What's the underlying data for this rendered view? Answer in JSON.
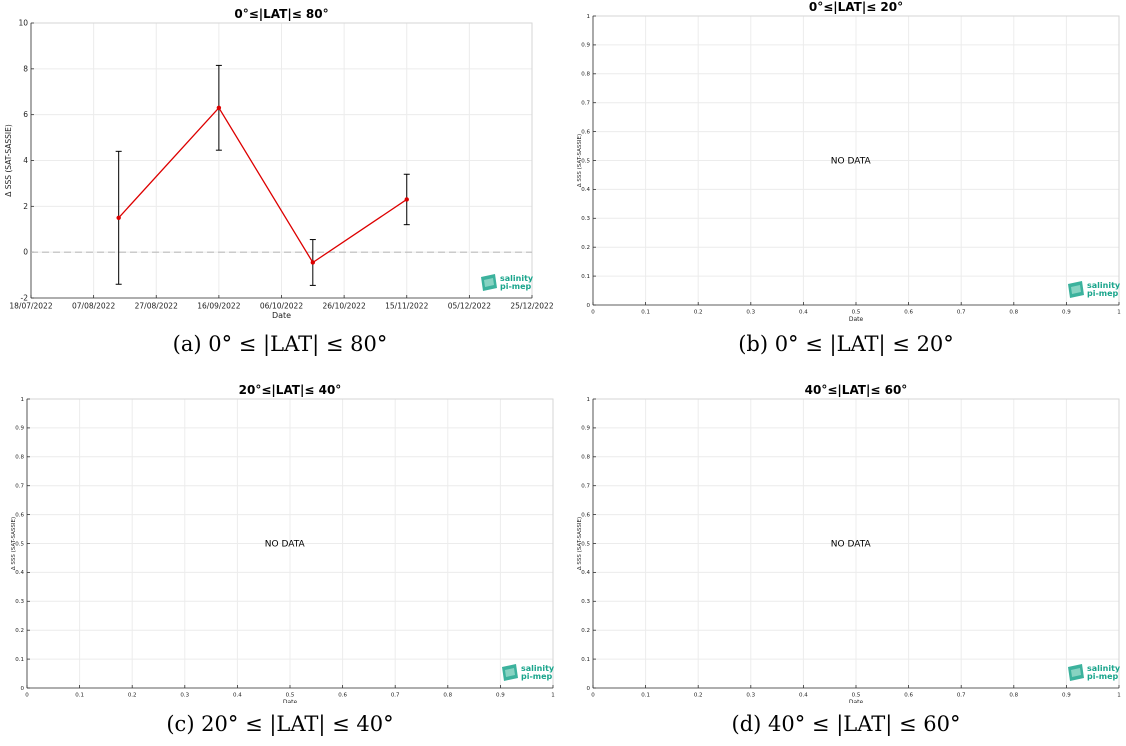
{
  "logo": {
    "line1": "salinity",
    "line2": "pi-mep",
    "color": "#1aa58c"
  },
  "chart_data": [
    {
      "type": "line",
      "title": "0°≤|LAT|≤ 80°",
      "xlabel": "Date",
      "ylabel": "Δ SSS (SAT-SASSIE)",
      "x_axis": "date",
      "xlim": [
        "2022-07-18",
        "2022-12-25"
      ],
      "ylim": [
        -2,
        10
      ],
      "xticks": [
        "18/07/2022",
        "07/08/2022",
        "27/08/2022",
        "16/09/2022",
        "06/10/2022",
        "26/10/2022",
        "15/11/2022",
        "05/12/2022",
        "25/12/2022"
      ],
      "yticks": [
        "-2",
        "0",
        "2",
        "4",
        "6",
        "8",
        "10"
      ],
      "grid": true,
      "zero_line": true,
      "series": [
        {
          "color": "#dd0000",
          "points": [
            {
              "x": "2022-08-15",
              "y": 1.5,
              "err": 2.9
            },
            {
              "x": "2022-09-16",
              "y": 6.3,
              "err": 1.85
            },
            {
              "x": "2022-10-16",
              "y": -0.45,
              "err": 1.0
            },
            {
              "x": "2022-11-15",
              "y": 2.3,
              "err": 1.1
            }
          ]
        }
      ],
      "caption": "(a) 0° ≤ |LAT| ≤ 80°"
    },
    {
      "type": "line",
      "title": "0°≤|LAT|≤ 20°",
      "xlabel": "Date",
      "ylabel": "Δ SSS (SAT-SASSIE)",
      "xlim": [
        0,
        1
      ],
      "ylim": [
        0,
        1
      ],
      "xticks": [
        "0",
        "0.1",
        "0.2",
        "0.3",
        "0.4",
        "0.5",
        "0.6",
        "0.7",
        "0.8",
        "0.9",
        "1"
      ],
      "yticks": [
        "0",
        "0.1",
        "0.2",
        "0.3",
        "0.4",
        "0.5",
        "0.6",
        "0.7",
        "0.8",
        "0.9",
        "1"
      ],
      "grid": true,
      "annotation": "NO DATA",
      "caption": "(b) 0° ≤ |LAT| ≤ 20°"
    },
    {
      "type": "line",
      "title": "20°≤|LAT|≤ 40°",
      "xlabel": "Date",
      "ylabel": "Δ SSS (SAT-SASSIE)",
      "xlim": [
        0,
        1
      ],
      "ylim": [
        0,
        1
      ],
      "xticks": [
        "0",
        "0.1",
        "0.2",
        "0.3",
        "0.4",
        "0.5",
        "0.6",
        "0.7",
        "0.8",
        "0.9",
        "1"
      ],
      "yticks": [
        "0",
        "0.1",
        "0.2",
        "0.3",
        "0.4",
        "0.5",
        "0.6",
        "0.7",
        "0.8",
        "0.9",
        "1"
      ],
      "grid": true,
      "annotation": "NO DATA",
      "caption": "(c) 20° ≤ |LAT| ≤ 40°"
    },
    {
      "type": "line",
      "title": "40°≤|LAT|≤ 60°",
      "xlabel": "Date",
      "ylabel": "Δ SSS (SAT-SASSIE)",
      "xlim": [
        0,
        1
      ],
      "ylim": [
        0,
        1
      ],
      "xticks": [
        "0",
        "0.1",
        "0.2",
        "0.3",
        "0.4",
        "0.5",
        "0.6",
        "0.7",
        "0.8",
        "0.9",
        "1"
      ],
      "yticks": [
        "0",
        "0.1",
        "0.2",
        "0.3",
        "0.4",
        "0.5",
        "0.6",
        "0.7",
        "0.8",
        "0.9",
        "1"
      ],
      "grid": true,
      "annotation": "NO DATA",
      "caption": "(d) 40° ≤ |LAT| ≤ 60°"
    }
  ]
}
